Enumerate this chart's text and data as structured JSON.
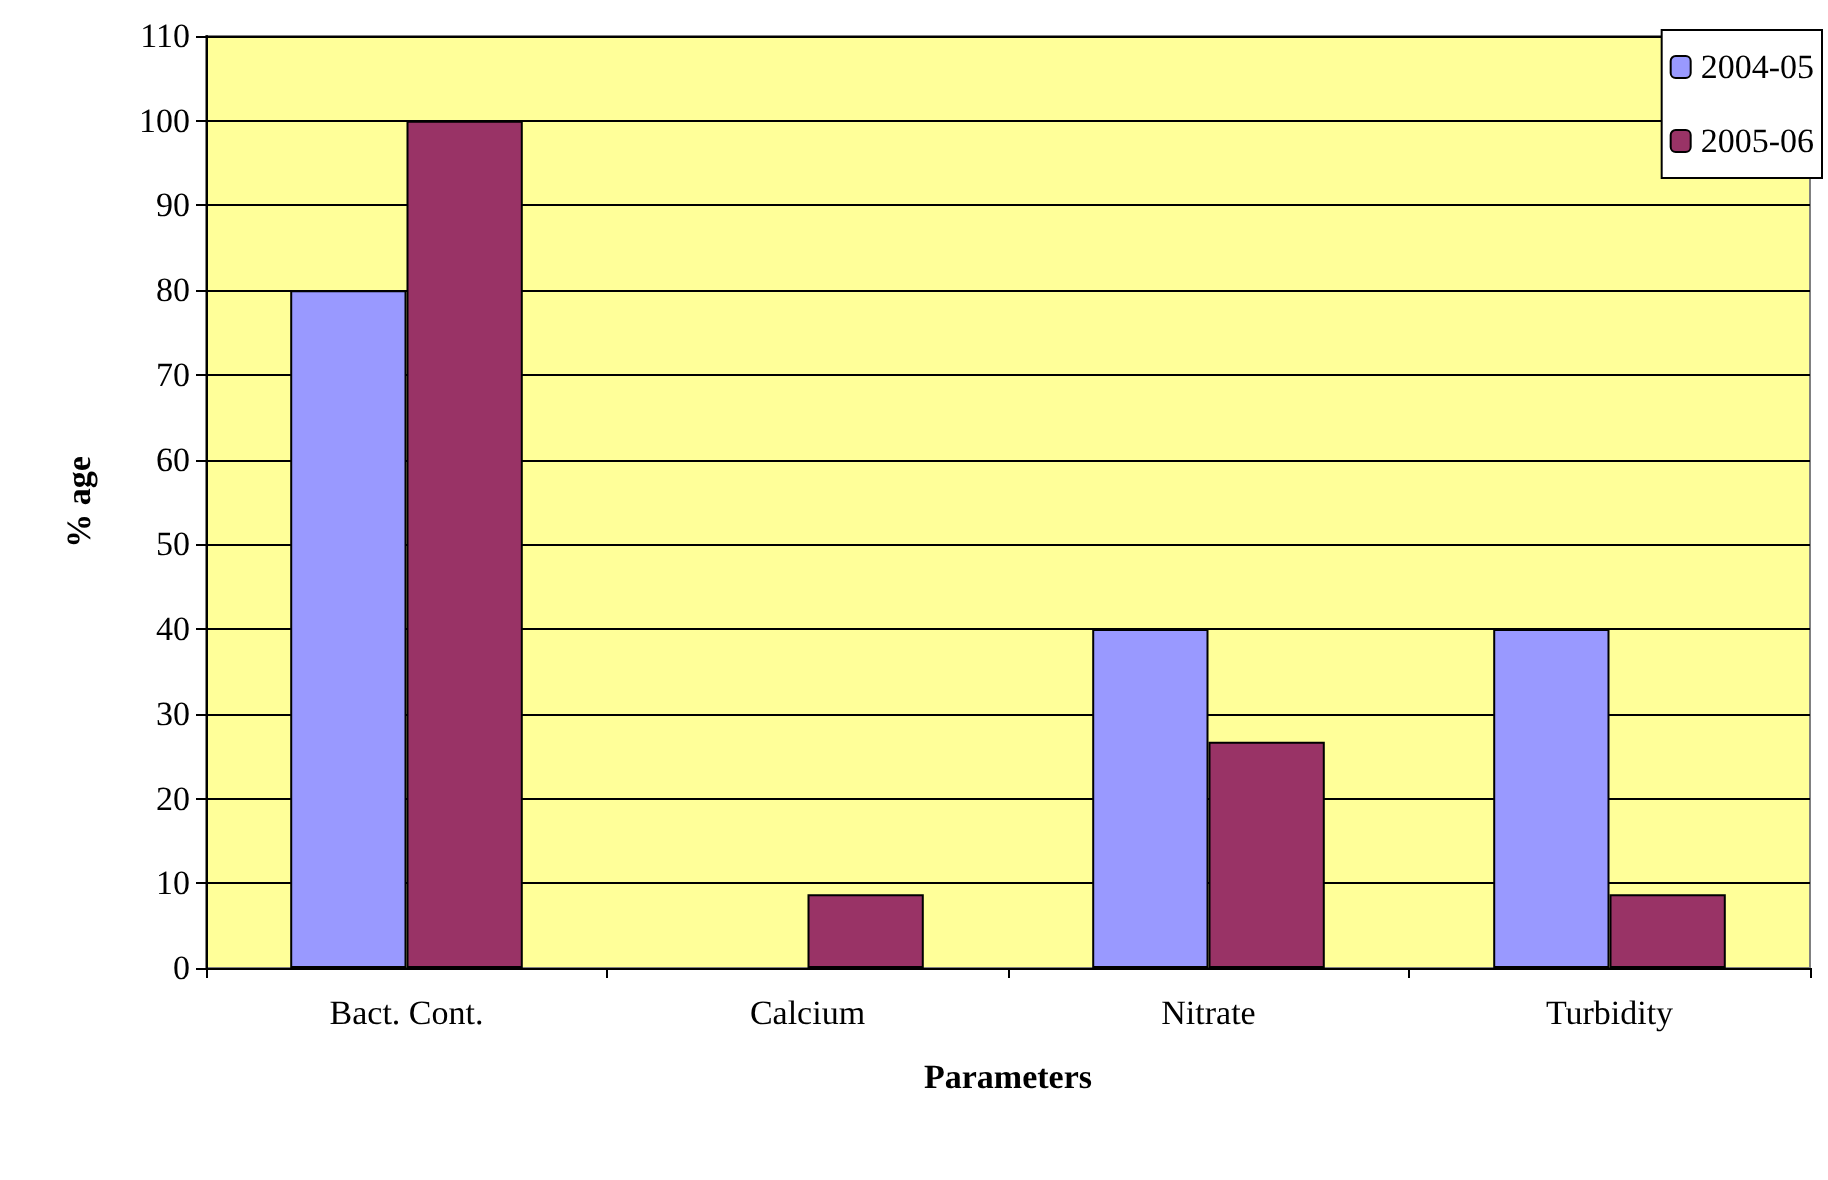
{
  "chart_data": {
    "type": "bar",
    "xlabel": "Parameters",
    "ylabel": "% age",
    "categories": [
      "Bact. Cont.",
      "Calcium",
      "Nitrate",
      "Turbidity"
    ],
    "series": [
      {
        "name": "2004-05",
        "color": "#9999ff",
        "values": [
          80,
          null,
          40,
          40
        ]
      },
      {
        "name": "2005-06",
        "color": "#993366",
        "values": [
          100,
          8.7,
          26.7,
          8.7
        ]
      }
    ],
    "ylim": [
      0,
      110
    ],
    "yticks": [
      0,
      10,
      20,
      30,
      40,
      50,
      60,
      70,
      80,
      90,
      100,
      110
    ],
    "grid": "y",
    "legend": "top right"
  }
}
